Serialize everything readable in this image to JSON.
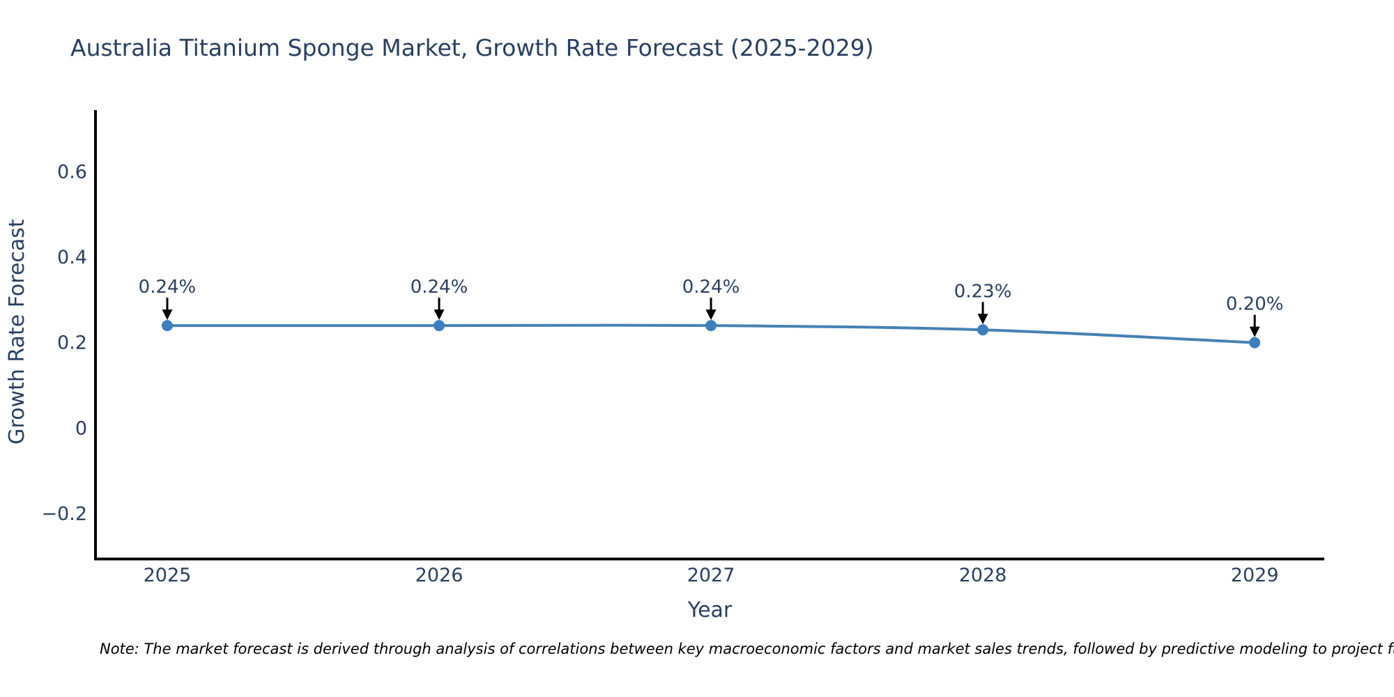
{
  "chart_data": {
    "type": "line",
    "title": "Australia Titanium Sponge Market, Growth Rate Forecast (2025-2029)",
    "xlabel": "Year",
    "ylabel": "Growth Rate Forecast",
    "x": [
      2025,
      2026,
      2027,
      2028,
      2029
    ],
    "series": [
      {
        "name": "Growth Rate Forecast",
        "values": [
          0.24,
          0.24,
          0.24,
          0.23,
          0.2
        ]
      }
    ],
    "point_labels": [
      "0.24%",
      "0.24%",
      "0.24%",
      "0.23%",
      "0.20%"
    ],
    "xtick_labels": [
      "2025",
      "2026",
      "2027",
      "2028",
      "2029"
    ],
    "yticks": [
      -0.2,
      0,
      0.2,
      0.4,
      0.6
    ],
    "ytick_labels": [
      "−0.2",
      "0",
      "0.2",
      "0.4",
      "0.6"
    ],
    "xlim": [
      2024.736,
      2029.256
    ],
    "ylim": [
      -0.306,
      0.744
    ],
    "grid": false,
    "legend": "none",
    "colors": {
      "line": "#4682b4",
      "marker": "#3c7ebf",
      "axis": "#000000",
      "tick_text": "#2a3f5f",
      "title_text": "#2a3f5f",
      "annotation_text": "#2a3f5f",
      "annotation_arrow": "#000000",
      "background": "#ffffff"
    }
  },
  "note": "Note: The market forecast is derived through analysis of correlations between key macroeconomic factors and market sales trends, followed by predictive modeling to project future sales."
}
